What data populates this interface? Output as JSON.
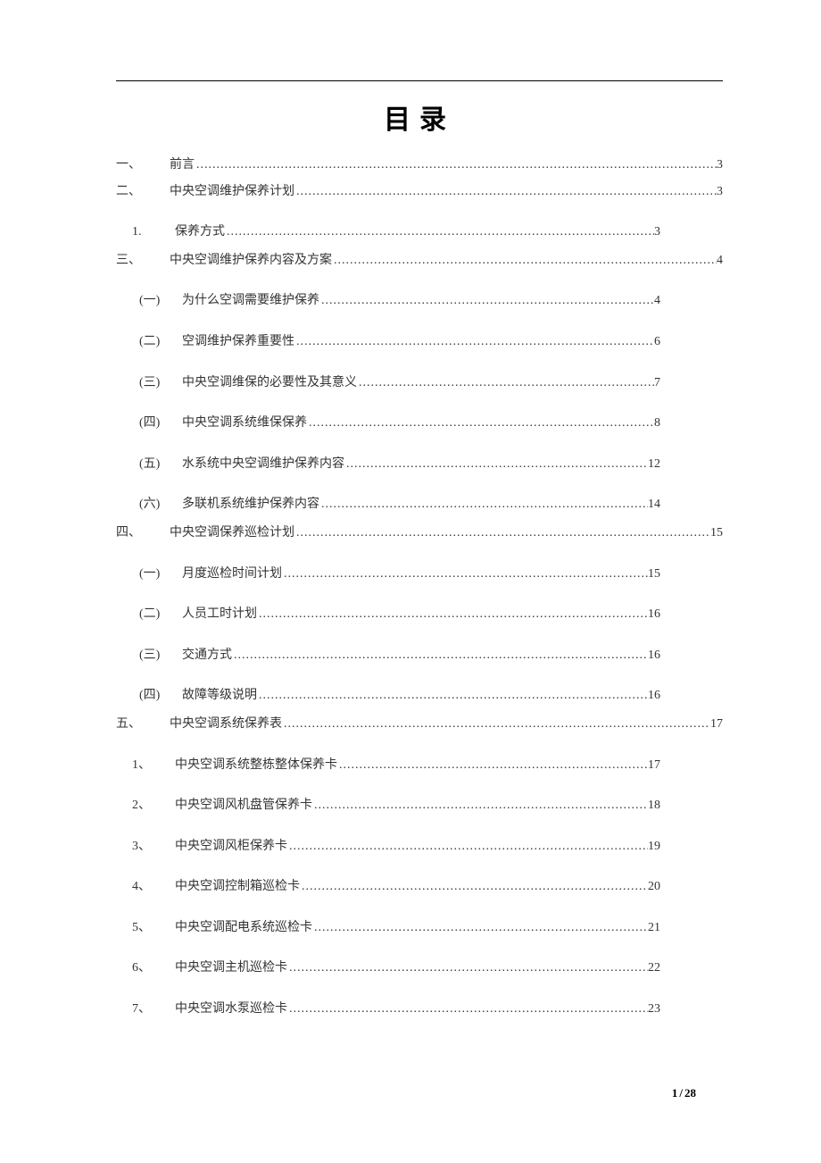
{
  "title": "目录",
  "footer": {
    "current": "1",
    "sep": "/",
    "total": "28"
  },
  "entries": [
    {
      "level": "1",
      "num": "一、",
      "text": "前言",
      "page": "3"
    },
    {
      "level": "1",
      "num": "二、",
      "text": "中央空调维护保养计划",
      "page": "3"
    },
    {
      "level": "2",
      "num": "1.",
      "text": "保养方式",
      "page": "3"
    },
    {
      "level": "1",
      "num": "三、",
      "text": "中央空调维护保养内容及方案",
      "page": "4"
    },
    {
      "level": "2b",
      "num": "(一)",
      "text": "为什么空调需要维护保养",
      "page": "4"
    },
    {
      "level": "2b",
      "num": "(二)",
      "text": "空调维护保养重要性",
      "page": "6"
    },
    {
      "level": "2b",
      "num": "(三)",
      "text": "中央空调维保的必要性及其意义",
      "page": "7"
    },
    {
      "level": "2b",
      "num": "(四)",
      "text": "中央空调系统维保保养",
      "page": "8"
    },
    {
      "level": "2b",
      "num": "(五)",
      "text": "水系统中央空调维护保养内容",
      "page": "12"
    },
    {
      "level": "2b",
      "num": "(六)",
      "text": "多联机系统维护保养内容",
      "page": "14"
    },
    {
      "level": "1",
      "num": "四、",
      "text": "中央空调保养巡检计划",
      "page": "15"
    },
    {
      "level": "2b",
      "num": "(一)",
      "text": "月度巡检时间计划",
      "page": "15"
    },
    {
      "level": "2b",
      "num": "(二)",
      "text": "人员工时计划",
      "page": "16"
    },
    {
      "level": "2b",
      "num": "(三)",
      "text": "交通方式",
      "page": "16"
    },
    {
      "level": "2b",
      "num": "(四)",
      "text": "故障等级说明",
      "page": "16"
    },
    {
      "level": "1",
      "num": "五、",
      "text": "中央空调系统保养表",
      "page": "17"
    },
    {
      "level": "2",
      "num": "1、",
      "text": "中央空调系统整栋整体保养卡",
      "page": "17"
    },
    {
      "level": "2",
      "num": "2、",
      "text": "中央空调风机盘管保养卡",
      "page": "18"
    },
    {
      "level": "2",
      "num": "3、",
      "text": "中央空调风柜保养卡",
      "page": "19"
    },
    {
      "level": "2",
      "num": "4、",
      "text": "中央空调控制箱巡检卡",
      "page": "20"
    },
    {
      "level": "2",
      "num": "5、",
      "text": "中央空调配电系统巡检卡",
      "page": "21"
    },
    {
      "level": "2",
      "num": "6、",
      "text": "中央空调主机巡检卡",
      "page": "22"
    },
    {
      "level": "2",
      "num": "7、",
      "text": "中央空调水泵巡检卡",
      "page": "23"
    }
  ]
}
